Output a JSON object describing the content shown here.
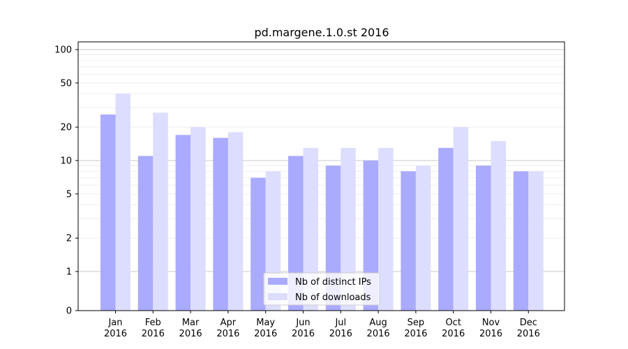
{
  "chart_data": {
    "type": "bar",
    "title": "pd.margene.1.0.st 2016",
    "xlabel": "",
    "ylabel": "",
    "yscale": "symlog",
    "ylim": [
      0,
      100
    ],
    "yticks": [
      0,
      1,
      2,
      5,
      10,
      20,
      50,
      100
    ],
    "grid": true,
    "legend_position": "bottom-center",
    "categories": [
      "Jan\n2016",
      "Feb\n2016",
      "Mar\n2016",
      "Apr\n2016",
      "May\n2016",
      "Jun\n2016",
      "Jul\n2016",
      "Aug\n2016",
      "Sep\n2016",
      "Oct\n2016",
      "Nov\n2016",
      "Dec\n2016"
    ],
    "series": [
      {
        "name": "Nb of distinct IPs",
        "color": "#aaaaff",
        "values": [
          26,
          11,
          17,
          16,
          7,
          11,
          9,
          10,
          8,
          13,
          9,
          8
        ]
      },
      {
        "name": "Nb of downloads",
        "color": "#ddddff",
        "values": [
          40,
          27,
          20,
          18,
          8,
          13,
          13,
          13,
          9,
          20,
          15,
          8
        ]
      }
    ]
  }
}
